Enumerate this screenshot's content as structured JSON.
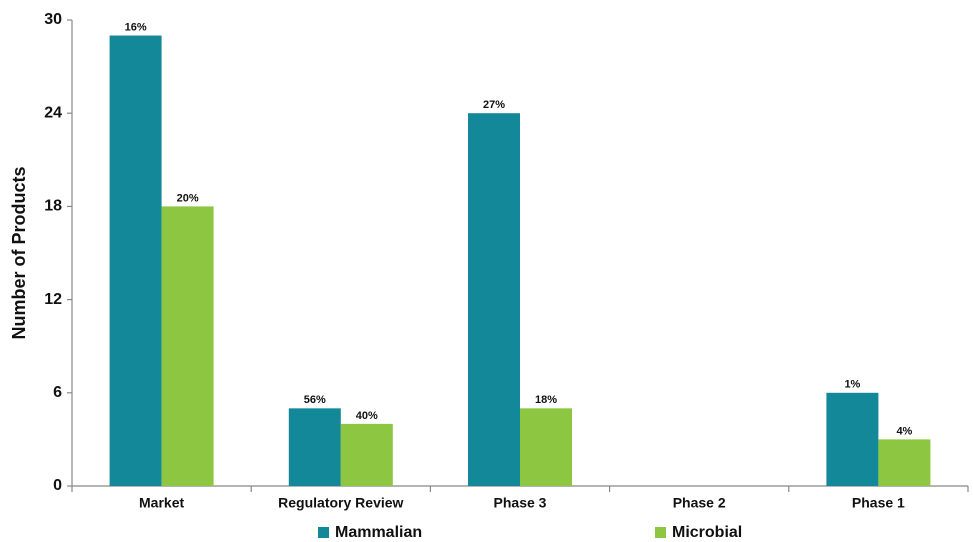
{
  "chart_data": {
    "type": "bar",
    "y_label": "Number of Products",
    "categories": [
      "Market",
      "Regulatory Review",
      "Phase 3",
      "Phase 2",
      "Phase 1"
    ],
    "series": [
      {
        "name": "Mammalian",
        "color": "#138898",
        "values": [
          29,
          5,
          24,
          0,
          6
        ],
        "data_labels": [
          "16%",
          "56%",
          "27%",
          null,
          "1%"
        ]
      },
      {
        "name": "Microbial",
        "color": "#8dc641",
        "values": [
          18,
          4,
          5,
          0,
          3
        ],
        "data_labels": [
          "20%",
          "40%",
          "18%",
          null,
          "4%"
        ]
      }
    ],
    "ylim": [
      0,
      30
    ],
    "yticks": [
      0,
      6,
      12,
      18,
      24,
      30
    ],
    "grid": false,
    "legend": "bottom"
  }
}
